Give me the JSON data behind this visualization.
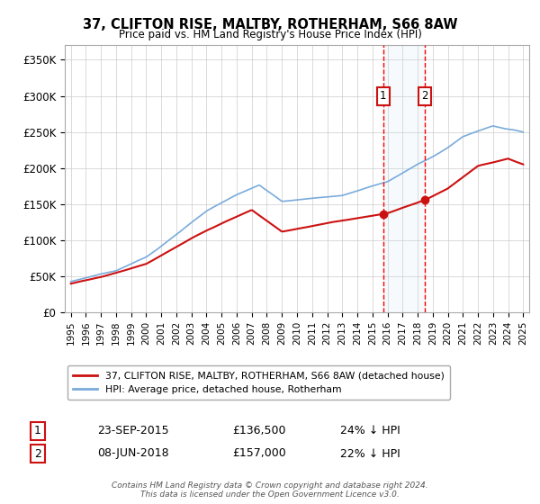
{
  "title": "37, CLIFTON RISE, MALTBY, ROTHERHAM, S66 8AW",
  "subtitle": "Price paid vs. HM Land Registry's House Price Index (HPI)",
  "background_color": "#ffffff",
  "plot_bg_color": "#ffffff",
  "grid_color": "#cccccc",
  "hpi_color": "#7aabdb",
  "price_color": "#cc1111",
  "legend_line1": "37, CLIFTON RISE, MALTBY, ROTHERHAM, S66 8AW (detached house)",
  "legend_line2": "HPI: Average price, detached house, Rotherham",
  "footer": "Contains HM Land Registry data © Crown copyright and database right 2024.\nThis data is licensed under the Open Government Licence v3.0.",
  "note1_num": "1",
  "note2_num": "2",
  "note1_date": "23-SEP-2015",
  "note1_price": "£136,500",
  "note1_pct": "24% ↓ HPI",
  "note2_date": "08-JUN-2018",
  "note2_price": "£157,000",
  "note2_pct": "22% ↓ HPI",
  "yticks": [
    0,
    50000,
    100000,
    150000,
    200000,
    250000,
    300000,
    350000
  ],
  "ylabels": [
    "£0",
    "£50K",
    "£100K",
    "£150K",
    "£200K",
    "£250K",
    "£300K",
    "£350K"
  ],
  "ylim": [
    0,
    370000
  ],
  "xlim": [
    1994.6,
    2025.4
  ]
}
